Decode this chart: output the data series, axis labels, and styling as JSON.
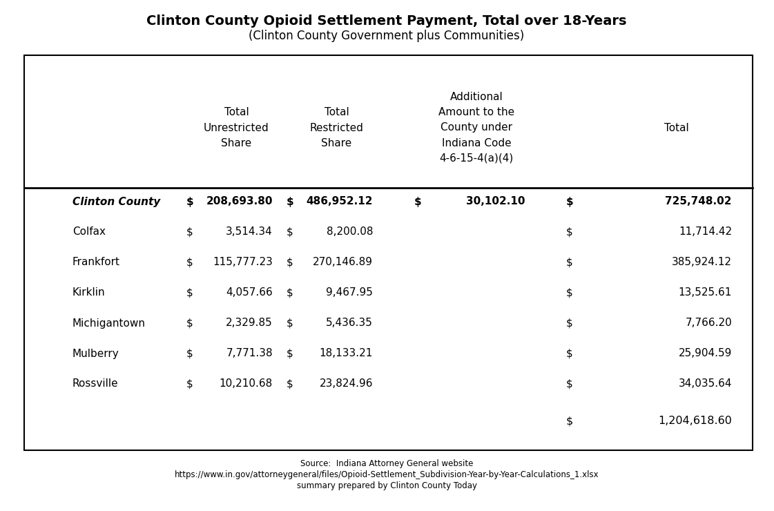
{
  "title_line1": "Clinton County Opioid Settlement Payment, Total over 18-Years",
  "title_line2": "(Clinton County Government plus Communities)",
  "col_headers": [
    "Total\nUnrestricted\nShare",
    "Total\nRestricted\nShare",
    "Additional\nAmount to the\nCounty under\nIndiana Code\n4-6-15-4(a)(4)",
    "Total"
  ],
  "rows": [
    {
      "name": "Clinton County",
      "bold": true,
      "unrestricted": [
        "$",
        "208,693.80"
      ],
      "restricted": [
        "$",
        "486,952.12"
      ],
      "additional": [
        "$",
        "30,102.10"
      ],
      "total": [
        "$",
        "725,748.02"
      ]
    },
    {
      "name": "Colfax",
      "bold": false,
      "unrestricted": [
        "$",
        "3,514.34"
      ],
      "restricted": [
        "$",
        "8,200.08"
      ],
      "additional": [
        "",
        ""
      ],
      "total": [
        "$",
        "11,714.42"
      ]
    },
    {
      "name": "Frankfort",
      "bold": false,
      "unrestricted": [
        "$",
        "115,777.23"
      ],
      "restricted": [
        "$",
        "270,146.89"
      ],
      "additional": [
        "",
        ""
      ],
      "total": [
        "$",
        "385,924.12"
      ]
    },
    {
      "name": "Kirklin",
      "bold": false,
      "unrestricted": [
        "$",
        "4,057.66"
      ],
      "restricted": [
        "$",
        "9,467.95"
      ],
      "additional": [
        "",
        ""
      ],
      "total": [
        "$",
        "13,525.61"
      ]
    },
    {
      "name": "Michigantown",
      "bold": false,
      "unrestricted": [
        "$",
        "2,329.85"
      ],
      "restricted": [
        "$",
        "5,436.35"
      ],
      "additional": [
        "",
        ""
      ],
      "total": [
        "$",
        "7,766.20"
      ]
    },
    {
      "name": "Mulberry",
      "bold": false,
      "unrestricted": [
        "$",
        "7,771.38"
      ],
      "restricted": [
        "$",
        "18,133.21"
      ],
      "additional": [
        "",
        ""
      ],
      "total": [
        "$",
        "25,904.59"
      ]
    },
    {
      "name": "Rossville",
      "bold": false,
      "unrestricted": [
        "$",
        "10,210.68"
      ],
      "restricted": [
        "$",
        "23,824.96"
      ],
      "additional": [
        "",
        ""
      ],
      "total": [
        "$",
        "34,035.64"
      ]
    }
  ],
  "grand_total_dollar": "$",
  "grand_total_num": "1,204,618.60",
  "source_line1": "Source:  Indiana Attorney General website",
  "source_line2": "https://www.in.gov/attorneygeneral/files/Opioid-Settlement_Subdivision-Year-by-Year-Calculations_1.xlsx",
  "source_line3": "summary prepared by Clinton County Today",
  "bg_color": "#ffffff",
  "border_color": "#000000",
  "text_color": "#000000",
  "title1_fontsize": 14,
  "title2_fontsize": 12,
  "header_fontsize": 11,
  "data_fontsize": 11,
  "source_fontsize": 8.5
}
